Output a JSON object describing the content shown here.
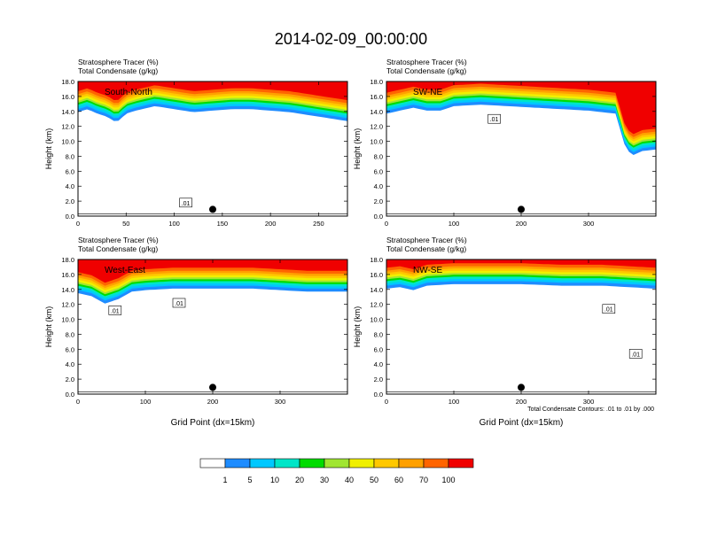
{
  "title": "2014-02-09_00:00:00",
  "colors": {
    "levels": [
      "#ffffff",
      "#1e8cff",
      "#00c8ff",
      "#00e6c8",
      "#00dc00",
      "#a0e632",
      "#f0f000",
      "#ffc800",
      "#ffa000",
      "#ff6400",
      "#f00000"
    ],
    "contour": "#000000"
  },
  "colorbar": {
    "labels": [
      "1",
      "5",
      "10",
      "20",
      "30",
      "40",
      "50",
      "60",
      "70",
      "100"
    ]
  },
  "footnote": "Total Condensate Contours: .01 to .01 by .000",
  "chart_data": [
    {
      "type": "heatmap",
      "panel_title": "South-North",
      "left_label1": "Stratosphere Tracer   (%)",
      "left_label2": "Total Condensate   (g/kg)",
      "ylabel": "Height (km)",
      "xlabel": "",
      "xlim": [
        0,
        280
      ],
      "ylim": [
        0,
        18
      ],
      "xticks": [
        "0",
        "50",
        "100",
        "150",
        "200",
        "250"
      ],
      "yticks": [
        "0.0",
        "2.0",
        "4.0",
        "6.0",
        "8.0",
        "10.0",
        "12.0",
        "14.0",
        "16.0",
        "18.0"
      ],
      "marker_x": 140,
      "contour_labels": [
        {
          "text": ".01",
          "x": 112,
          "y": 1.8
        }
      ],
      "tropopause": [
        [
          0,
          14.8
        ],
        [
          10,
          15.2
        ],
        [
          20,
          14.6
        ],
        [
          30,
          14.2
        ],
        [
          40,
          13.4
        ],
        [
          50,
          14.6
        ],
        [
          60,
          15.0
        ],
        [
          80,
          15.6
        ],
        [
          100,
          15.2
        ],
        [
          120,
          14.8
        ],
        [
          140,
          15.0
        ],
        [
          160,
          15.2
        ],
        [
          180,
          15.2
        ],
        [
          200,
          15.0
        ],
        [
          220,
          14.8
        ],
        [
          240,
          14.4
        ],
        [
          260,
          14.0
        ],
        [
          280,
          13.6
        ]
      ]
    },
    {
      "type": "heatmap",
      "panel_title": "SW-NE",
      "left_label1": "Stratosphere Tracer   (%)",
      "left_label2": "Total Condensate   (g/kg)",
      "ylabel": "Height (km)",
      "xlabel": "",
      "xlim": [
        0,
        400
      ],
      "ylim": [
        0,
        18
      ],
      "xticks": [
        "0",
        "100",
        "200",
        "300"
      ],
      "yticks": [
        "0.0",
        "2.0",
        "4.0",
        "6.0",
        "8.0",
        "10.0",
        "12.0",
        "14.0",
        "16.0",
        "18.0"
      ],
      "marker_x": 200,
      "contour_labels": [
        {
          "text": ".01",
          "x": 160,
          "y": 13.0
        }
      ],
      "tropopause": [
        [
          0,
          14.6
        ],
        [
          20,
          15.0
        ],
        [
          40,
          15.4
        ],
        [
          60,
          15.0
        ],
        [
          80,
          15.0
        ],
        [
          100,
          15.6
        ],
        [
          140,
          15.8
        ],
        [
          180,
          15.6
        ],
        [
          220,
          15.4
        ],
        [
          260,
          15.2
        ],
        [
          300,
          15.0
        ],
        [
          340,
          14.6
        ],
        [
          355,
          10.0
        ],
        [
          365,
          9.0
        ],
        [
          380,
          9.6
        ],
        [
          400,
          9.8
        ]
      ]
    },
    {
      "type": "heatmap",
      "panel_title": "West-East",
      "left_label1": "Stratosphere Tracer   (%)",
      "left_label2": "Total Condensate   (g/kg)",
      "ylabel": "Height (km)",
      "xlabel": "Grid Point (dx=15km)",
      "xlim": [
        0,
        400
      ],
      "ylim": [
        0,
        18
      ],
      "xticks": [
        "0",
        "100",
        "200",
        "300"
      ],
      "yticks": [
        "0.0",
        "2.0",
        "4.0",
        "6.0",
        "8.0",
        "10.0",
        "12.0",
        "14.0",
        "16.0",
        "18.0"
      ],
      "marker_x": 200,
      "contour_labels": [
        {
          "text": ".01",
          "x": 55,
          "y": 11.2
        },
        {
          "text": ".01",
          "x": 150,
          "y": 12.2
        }
      ],
      "tropopause": [
        [
          0,
          14.4
        ],
        [
          20,
          14.0
        ],
        [
          40,
          13.0
        ],
        [
          60,
          13.6
        ],
        [
          80,
          14.6
        ],
        [
          100,
          14.8
        ],
        [
          140,
          15.0
        ],
        [
          180,
          15.0
        ],
        [
          220,
          15.0
        ],
        [
          260,
          15.0
        ],
        [
          300,
          14.8
        ],
        [
          340,
          14.6
        ],
        [
          400,
          14.6
        ]
      ]
    },
    {
      "type": "heatmap",
      "panel_title": "NW-SE",
      "left_label1": "Stratosphere Tracer   (%)",
      "left_label2": "Total Condensate   (g/kg)",
      "ylabel": "Height (km)",
      "xlabel": "Grid Point (dx=15km)",
      "xlim": [
        0,
        400
      ],
      "ylim": [
        0,
        18
      ],
      "xticks": [
        "0",
        "100",
        "200",
        "300"
      ],
      "yticks": [
        "0.0",
        "2.0",
        "4.0",
        "6.0",
        "8.0",
        "10.0",
        "12.0",
        "14.0",
        "16.0",
        "18.0"
      ],
      "marker_x": 200,
      "contour_labels": [
        {
          "text": ".01",
          "x": 330,
          "y": 11.4
        },
        {
          "text": ".01",
          "x": 370,
          "y": 5.4
        }
      ],
      "tropopause": [
        [
          0,
          15.0
        ],
        [
          20,
          15.2
        ],
        [
          40,
          14.8
        ],
        [
          60,
          15.4
        ],
        [
          100,
          15.6
        ],
        [
          150,
          15.6
        ],
        [
          200,
          15.6
        ],
        [
          260,
          15.4
        ],
        [
          320,
          15.4
        ],
        [
          360,
          15.2
        ],
        [
          400,
          15.0
        ]
      ]
    }
  ]
}
